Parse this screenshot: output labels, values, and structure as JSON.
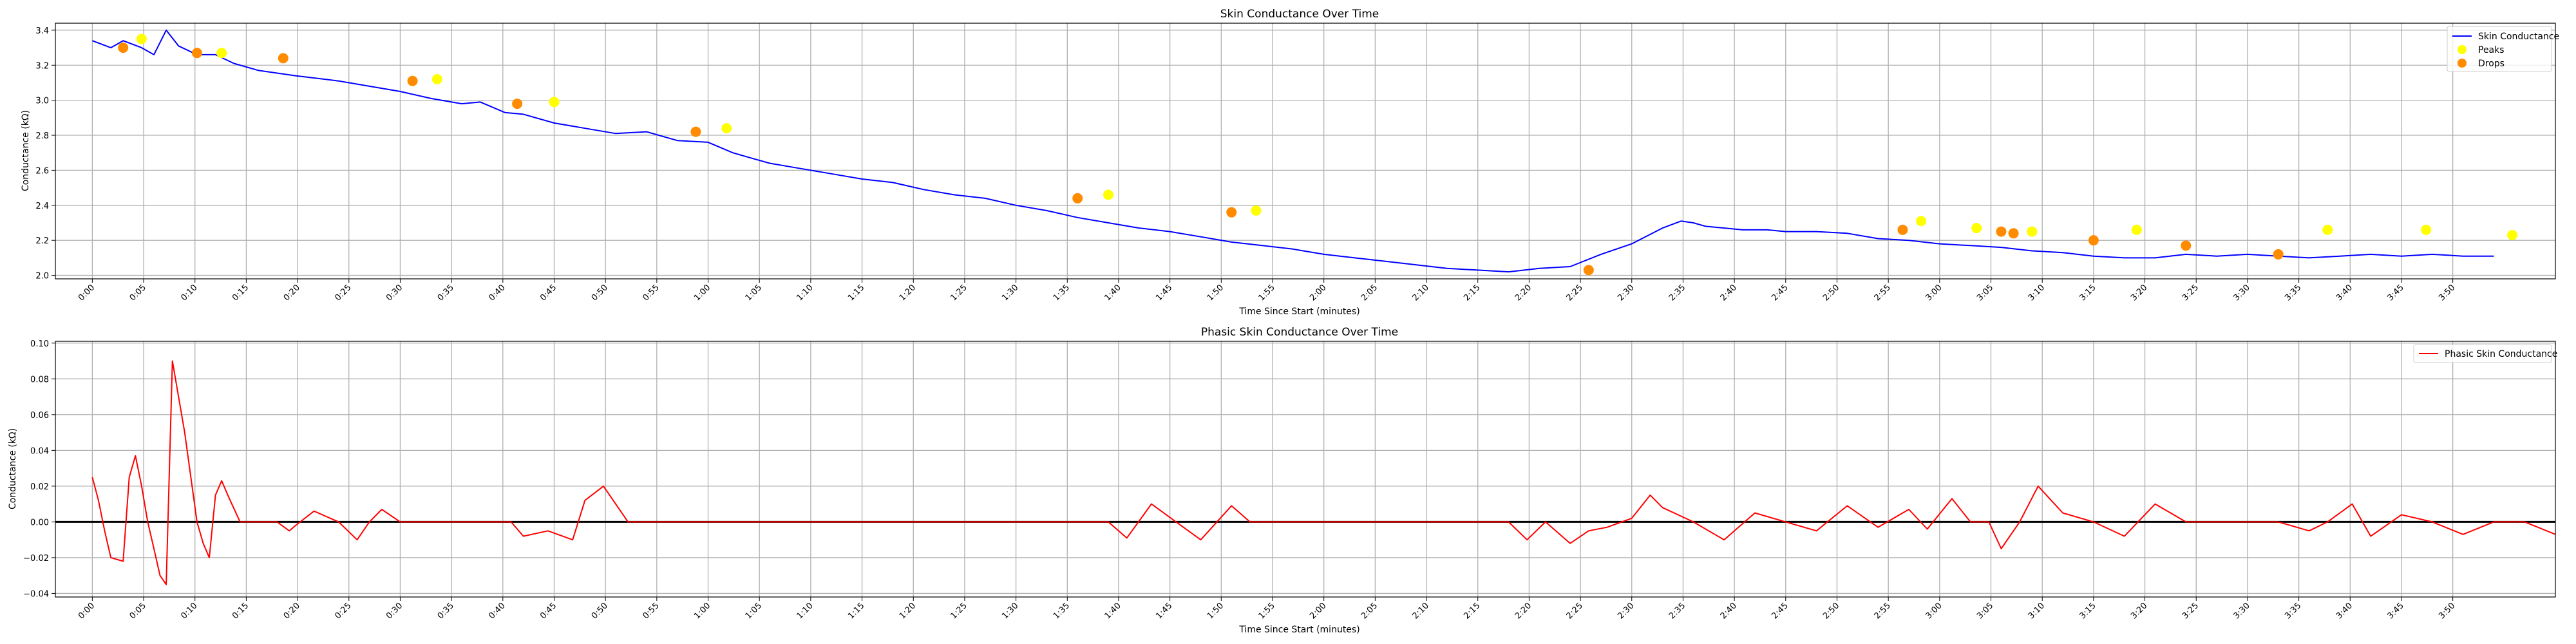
{
  "chart_data": [
    {
      "type": "line",
      "title": "Skin Conductance Over Time",
      "xlabel": "Time Since Start (minutes)",
      "ylabel": "Conductance (kΩ)",
      "xlim": [
        -0.06,
        4.0
      ],
      "ylim": [
        1.98,
        3.44
      ],
      "grid": true,
      "legend": "top-right",
      "x_ticks": [
        "0:00",
        "0:05",
        "0:10",
        "0:15",
        "0:20",
        "0:25",
        "0:30",
        "0:35",
        "0:40",
        "0:45",
        "0:50",
        "0:55",
        "1:00",
        "1:05",
        "1:10",
        "1:15",
        "1:20",
        "1:25",
        "1:30",
        "1:35",
        "1:40",
        "1:45",
        "1:50",
        "1:55",
        "2:00",
        "2:05",
        "2:10",
        "2:15",
        "2:20",
        "2:25",
        "2:30",
        "2:35",
        "2:40",
        "2:45",
        "2:50",
        "2:55",
        "3:00",
        "3:05",
        "3:10",
        "3:15",
        "3:20",
        "3:25",
        "3:30",
        "3:35",
        "3:40",
        "3:45",
        "3:50"
      ],
      "y_ticks": [
        "2.0",
        "2.2",
        "2.4",
        "2.6",
        "2.8",
        "3.0",
        "3.2",
        "3.4"
      ],
      "series": [
        {
          "name": "Skin Conductance",
          "color": "#0000ff",
          "x": [
            0.0,
            0.03,
            0.05,
            0.08,
            0.1,
            0.12,
            0.14,
            0.17,
            0.2,
            0.23,
            0.27,
            0.33,
            0.4,
            0.45,
            0.5,
            0.55,
            0.6,
            0.63,
            0.67,
            0.7,
            0.75,
            0.8,
            0.85,
            0.9,
            0.95,
            1.0,
            1.02,
            1.04,
            1.07,
            1.1,
            1.15,
            1.2,
            1.25,
            1.3,
            1.35,
            1.4,
            1.45,
            1.5,
            1.55,
            1.6,
            1.65,
            1.7,
            1.75,
            1.8,
            1.85,
            1.9,
            1.95,
            2.0,
            2.05,
            2.1,
            2.15,
            2.2,
            2.25,
            2.3,
            2.35,
            2.4,
            2.45,
            2.5,
            2.55,
            2.58,
            2.6,
            2.62,
            2.65,
            2.68,
            2.7,
            2.72,
            2.75,
            2.8,
            2.85,
            2.9,
            2.95,
            3.0,
            3.05,
            3.1,
            3.15,
            3.2,
            3.25,
            3.3,
            3.35,
            3.4,
            3.45,
            3.5,
            3.55,
            3.6,
            3.65,
            3.7,
            3.75,
            3.8,
            3.85,
            3.9
          ],
          "y": [
            3.34,
            3.3,
            3.34,
            3.3,
            3.26,
            3.4,
            3.31,
            3.26,
            3.26,
            3.21,
            3.17,
            3.14,
            3.11,
            3.08,
            3.05,
            3.01,
            2.98,
            2.99,
            2.93,
            2.92,
            2.87,
            2.84,
            2.81,
            2.82,
            2.77,
            2.76,
            2.73,
            2.7,
            2.67,
            2.64,
            2.61,
            2.58,
            2.55,
            2.53,
            2.49,
            2.46,
            2.44,
            2.4,
            2.37,
            2.33,
            2.3,
            2.27,
            2.25,
            2.22,
            2.19,
            2.17,
            2.15,
            2.12,
            2.1,
            2.08,
            2.06,
            2.04,
            2.03,
            2.02,
            2.04,
            2.05,
            2.12,
            2.18,
            2.27,
            2.31,
            2.3,
            2.28,
            2.27,
            2.26,
            2.26,
            2.26,
            2.25,
            2.25,
            2.24,
            2.21,
            2.2,
            2.18,
            2.17,
            2.16,
            2.14,
            2.13,
            2.11,
            2.1,
            2.1,
            2.12,
            2.11,
            2.12,
            2.11,
            2.1,
            2.11,
            2.12,
            2.11,
            2.12,
            2.11,
            2.11
          ]
        },
        {
          "name": "Peaks",
          "color": "#ffff00",
          "x": [
            0.08,
            0.21,
            0.56,
            0.75,
            1.03,
            1.65,
            1.89,
            2.97,
            3.06,
            3.15,
            3.32,
            3.63,
            3.79,
            3.93
          ],
          "y": [
            3.35,
            3.27,
            3.12,
            2.99,
            2.84,
            2.46,
            2.37,
            2.31,
            2.27,
            2.25,
            2.26,
            2.26,
            2.26,
            2.23
          ]
        },
        {
          "name": "Drops",
          "color": "#ff8c00",
          "x": [
            0.05,
            0.17,
            0.31,
            0.52,
            0.69,
            0.98,
            1.6,
            1.85,
            2.43,
            2.94,
            3.1,
            3.12,
            3.25,
            3.4,
            3.55
          ],
          "y": [
            3.3,
            3.27,
            3.24,
            3.11,
            2.98,
            2.82,
            2.44,
            2.36,
            2.03,
            2.26,
            2.25,
            2.24,
            2.2,
            2.17,
            2.12
          ]
        }
      ]
    },
    {
      "type": "line",
      "title": "Phasic Skin Conductance Over Time",
      "xlabel": "Time Since Start (minutes)",
      "ylabel": "Conductance (kΩ)",
      "xlim": [
        -0.06,
        4.0
      ],
      "ylim": [
        -0.042,
        0.101
      ],
      "grid": true,
      "legend": "top-right",
      "x_ticks": [
        "0:00",
        "0:05",
        "0:10",
        "0:15",
        "0:20",
        "0:25",
        "0:30",
        "0:35",
        "0:40",
        "0:45",
        "0:50",
        "0:55",
        "1:00",
        "1:05",
        "1:10",
        "1:15",
        "1:20",
        "1:25",
        "1:30",
        "1:35",
        "1:40",
        "1:45",
        "1:50",
        "1:55",
        "2:00",
        "2:05",
        "2:10",
        "2:15",
        "2:20",
        "2:25",
        "2:30",
        "2:35",
        "2:40",
        "2:45",
        "2:50",
        "2:55",
        "3:00",
        "3:05",
        "3:10",
        "3:15",
        "3:20",
        "3:25",
        "3:30",
        "3:35",
        "3:40",
        "3:45",
        "3:50"
      ],
      "y_ticks": [
        "−0.04",
        "−0.02",
        "0.00",
        "0.02",
        "0.04",
        "0.06",
        "0.08",
        "0.10"
      ],
      "baseline": 0,
      "series": [
        {
          "name": "Phasic Skin Conductance",
          "color": "#ff0000",
          "x": [
            0.0,
            0.01,
            0.02,
            0.03,
            0.05,
            0.06,
            0.07,
            0.08,
            0.09,
            0.1,
            0.11,
            0.12,
            0.13,
            0.15,
            0.17,
            0.18,
            0.19,
            0.2,
            0.21,
            0.22,
            0.24,
            0.3,
            0.32,
            0.33,
            0.36,
            0.4,
            0.43,
            0.45,
            0.47,
            0.5,
            0.55,
            0.6,
            0.62,
            0.65,
            0.68,
            0.7,
            0.74,
            0.78,
            0.8,
            0.83,
            0.87,
            0.9,
            0.93,
            0.95,
            0.97,
            1.0,
            1.02,
            1.04,
            1.06,
            1.1,
            1.3,
            1.34,
            1.38,
            1.41,
            1.43,
            1.46,
            1.5,
            1.6,
            1.65,
            1.68,
            1.72,
            1.76,
            1.8,
            1.85,
            1.88,
            1.9,
            2.2,
            2.3,
            2.33,
            2.36,
            2.4,
            2.43,
            2.46,
            2.5,
            2.53,
            2.55,
            2.6,
            2.65,
            2.7,
            2.75,
            2.8,
            2.85,
            2.9,
            2.95,
            2.98,
            3.02,
            3.05,
            3.08,
            3.1,
            3.13,
            3.16,
            3.2,
            3.25,
            3.3,
            3.35,
            3.4,
            3.45,
            3.5,
            3.55,
            3.6,
            3.63,
            3.67,
            3.7,
            3.75,
            3.8,
            3.85,
            3.9,
            3.95,
            4.0
          ],
          "y": [
            0.025,
            0.012,
            -0.005,
            -0.02,
            -0.022,
            0.025,
            0.037,
            0.02,
            0.0,
            -0.015,
            -0.03,
            -0.035,
            0.09,
            0.05,
            0.0,
            -0.012,
            -0.02,
            0.015,
            0.023,
            0.015,
            0.0,
            0.0,
            -0.005,
            -0.002,
            0.006,
            0.0,
            -0.01,
            0.0,
            0.007,
            0.0,
            0.0,
            0.0,
            0.0,
            0.0,
            0.0,
            -0.008,
            -0.005,
            -0.01,
            0.012,
            0.02,
            0.0,
            0.0,
            0.0,
            0.0,
            0.0,
            0.0,
            0.0,
            0.0,
            0.0,
            0.0,
            0.0,
            0.0,
            0.0,
            0.0,
            0.0,
            0.0,
            0.0,
            0.0,
            0.0,
            -0.009,
            0.01,
            0.0,
            -0.01,
            0.009,
            0.0,
            0.0,
            0.0,
            0.0,
            -0.01,
            0.0,
            -0.012,
            -0.005,
            -0.003,
            0.002,
            0.015,
            0.008,
            0.0,
            -0.01,
            0.005,
            0.0,
            -0.005,
            0.009,
            -0.003,
            0.007,
            -0.004,
            0.013,
            0.0,
            0.0,
            -0.015,
            0.0,
            0.02,
            0.005,
            0.0,
            -0.008,
            0.01,
            0.0,
            0.0,
            0.0,
            0.0,
            -0.005,
            0.0,
            0.01,
            -0.008,
            0.004,
            0.0,
            -0.007,
            0.0,
            0.0,
            -0.007
          ]
        }
      ]
    }
  ]
}
